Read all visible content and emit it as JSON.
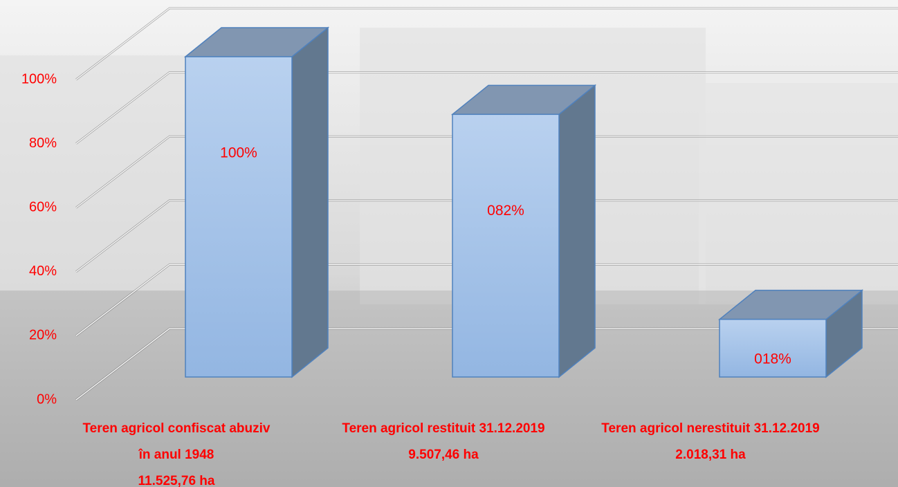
{
  "chart_data": {
    "type": "bar3d",
    "categories": [
      [
        "Teren agricol confiscat abuziv",
        "în anul 1948",
        "11.525,76 ha"
      ],
      [
        "Teren agricol restituit 31.12.2019",
        "9.507,46 ha"
      ],
      [
        "Teren agricol nerestituit 31.12.2019",
        "2.018,31 ha"
      ]
    ],
    "values": [
      100,
      82,
      18
    ],
    "value_labels": [
      "100%",
      "082%",
      "018%"
    ],
    "color": "#a6c4ea",
    "ylim": [
      0,
      100
    ],
    "yticks": [
      {
        "value": 0,
        "label": "0%"
      },
      {
        "value": 20,
        "label": "20%"
      },
      {
        "value": 40,
        "label": "40%"
      },
      {
        "value": 60,
        "label": "60%"
      },
      {
        "value": 80,
        "label": "80%"
      },
      {
        "value": 100,
        "label": "100%"
      }
    ],
    "grid": true
  }
}
